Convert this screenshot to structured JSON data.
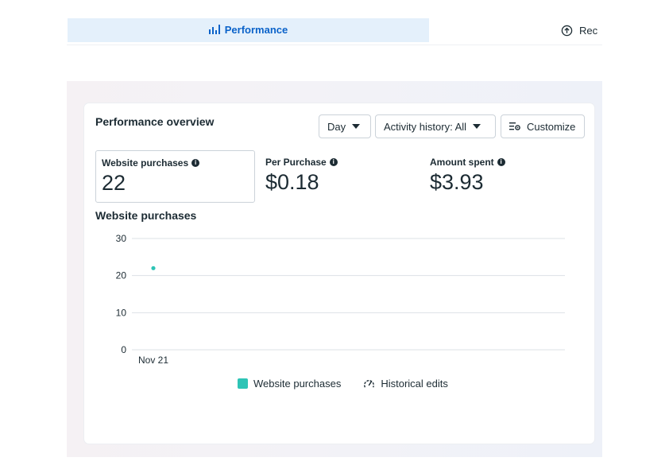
{
  "tabs": {
    "performance_label": "Performance",
    "rec_label": "Rec"
  },
  "overview": {
    "title": "Performance overview",
    "day_label": "Day",
    "activity_label": "Activity history: All",
    "customize_label": "Customize"
  },
  "metrics": [
    {
      "label": "Website purchases",
      "value": "22",
      "selected": true
    },
    {
      "label": "Per Purchase",
      "value": "$0.18",
      "selected": false
    },
    {
      "label": "Amount spent",
      "value": "$3.93",
      "selected": false
    }
  ],
  "chart_data": {
    "type": "scatter",
    "title": "Website purchases",
    "categories": [
      "Nov 21"
    ],
    "series": [
      {
        "name": "Website purchases",
        "values": [
          22
        ],
        "color": "#2ec4b6"
      }
    ],
    "ylim": [
      0,
      30
    ],
    "yticks": [
      0,
      10,
      20,
      30
    ],
    "grid": true,
    "legend": [
      "Website purchases",
      "Historical edits"
    ],
    "legend_placement": "bottom-center"
  },
  "colors": {
    "accent": "#0a62c9",
    "tab_bg": "#e4f0fb",
    "series": "#2ec4b6"
  }
}
